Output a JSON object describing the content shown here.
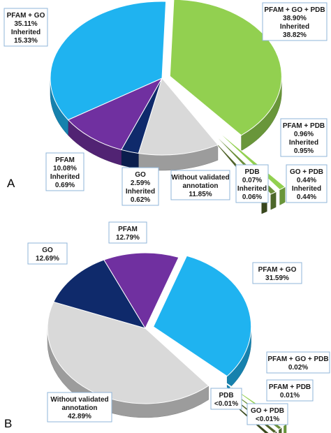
{
  "chart_data": [
    {
      "type": "pie",
      "panel": "A",
      "slices": [
        {
          "label": "PFAM + GO + PDB",
          "value": 38.9,
          "inherited_label": "Inherited",
          "inherited": 38.82,
          "color": "#92d050",
          "lines": [
            "PFAM + GO + PDB",
            "38.90%",
            "Inherited",
            "38.82%"
          ]
        },
        {
          "label": "PFAM + PDB",
          "value": 0.96,
          "inherited_label": "Inherited",
          "inherited": 0.95,
          "color": "#92d050",
          "lines": [
            "PFAM + PDB",
            "0.96%",
            "Inherited",
            "0.95%"
          ]
        },
        {
          "label": "GO + PDB",
          "value": 0.44,
          "inherited_label": "Inherited",
          "inherited": 0.44,
          "color": "#6b8f3a",
          "lines": [
            "GO + PDB",
            "0.44%",
            "Inherited",
            "0.44%"
          ]
        },
        {
          "label": "PDB",
          "value": 0.07,
          "inherited_label": "Inherited",
          "inherited": 0.06,
          "color": "#4f6228",
          "lines": [
            "PDB",
            "0.07%",
            "Inherited",
            "0.06%"
          ]
        },
        {
          "label": "Without validated annotation",
          "value": 11.85,
          "color": "#d9d9d9",
          "lines": [
            "Without validated",
            "annotation",
            "11.85%"
          ]
        },
        {
          "label": "GO",
          "value": 2.59,
          "inherited_label": "Inherited",
          "inherited": 0.62,
          "color": "#0f2a6b",
          "lines": [
            "GO",
            "2.59%",
            "Inherited",
            "0.62%"
          ]
        },
        {
          "label": "PFAM",
          "value": 10.08,
          "inherited_label": "Inherited",
          "inherited": 0.69,
          "color": "#7030a0",
          "lines": [
            "PFAM",
            "10.08%",
            "Inherited",
            "0.69%"
          ]
        },
        {
          "label": "PFAM + GO",
          "value": 35.11,
          "inherited_label": "Inherited",
          "inherited": 15.33,
          "color": "#1fb3f0",
          "lines": [
            "PFAM + GO",
            "35.11%",
            "Inherited",
            "15.33%"
          ]
        }
      ]
    },
    {
      "type": "pie",
      "panel": "B",
      "slices": [
        {
          "label": "PFAM + GO",
          "value": 31.59,
          "color": "#1fb3f0",
          "lines": [
            "PFAM + GO",
            "31.59%"
          ]
        },
        {
          "label": "PFAM + GO + PDB",
          "value": 0.02,
          "color": "#92d050",
          "lines": [
            "PFAM + GO + PDB",
            "0.02%"
          ]
        },
        {
          "label": "PFAM + PDB",
          "value": 0.01,
          "color": "#6b8f3a",
          "lines": [
            "PFAM + PDB",
            "0.01%"
          ]
        },
        {
          "label": "GO + PDB",
          "value": 0.01,
          "color": "#4f6228",
          "lines": [
            "GO + PDB",
            "<0.01%"
          ]
        },
        {
          "label": "PDB",
          "value": 0.01,
          "color": "#3a4a1e",
          "lines": [
            "PDB",
            "<0.01%"
          ]
        },
        {
          "label": "Without validated annotation",
          "value": 42.89,
          "color": "#d9d9d9",
          "lines": [
            "Without validated",
            "annotation",
            "42.89%"
          ]
        },
        {
          "label": "GO",
          "value": 12.69,
          "color": "#0f2a6b",
          "lines": [
            "GO",
            "12.69%"
          ]
        },
        {
          "label": "PFAM",
          "value": 12.79,
          "color": "#7030a0",
          "lines": [
            "PFAM",
            "12.79%"
          ]
        }
      ]
    }
  ],
  "panels": {
    "a": "A",
    "b": "B"
  }
}
